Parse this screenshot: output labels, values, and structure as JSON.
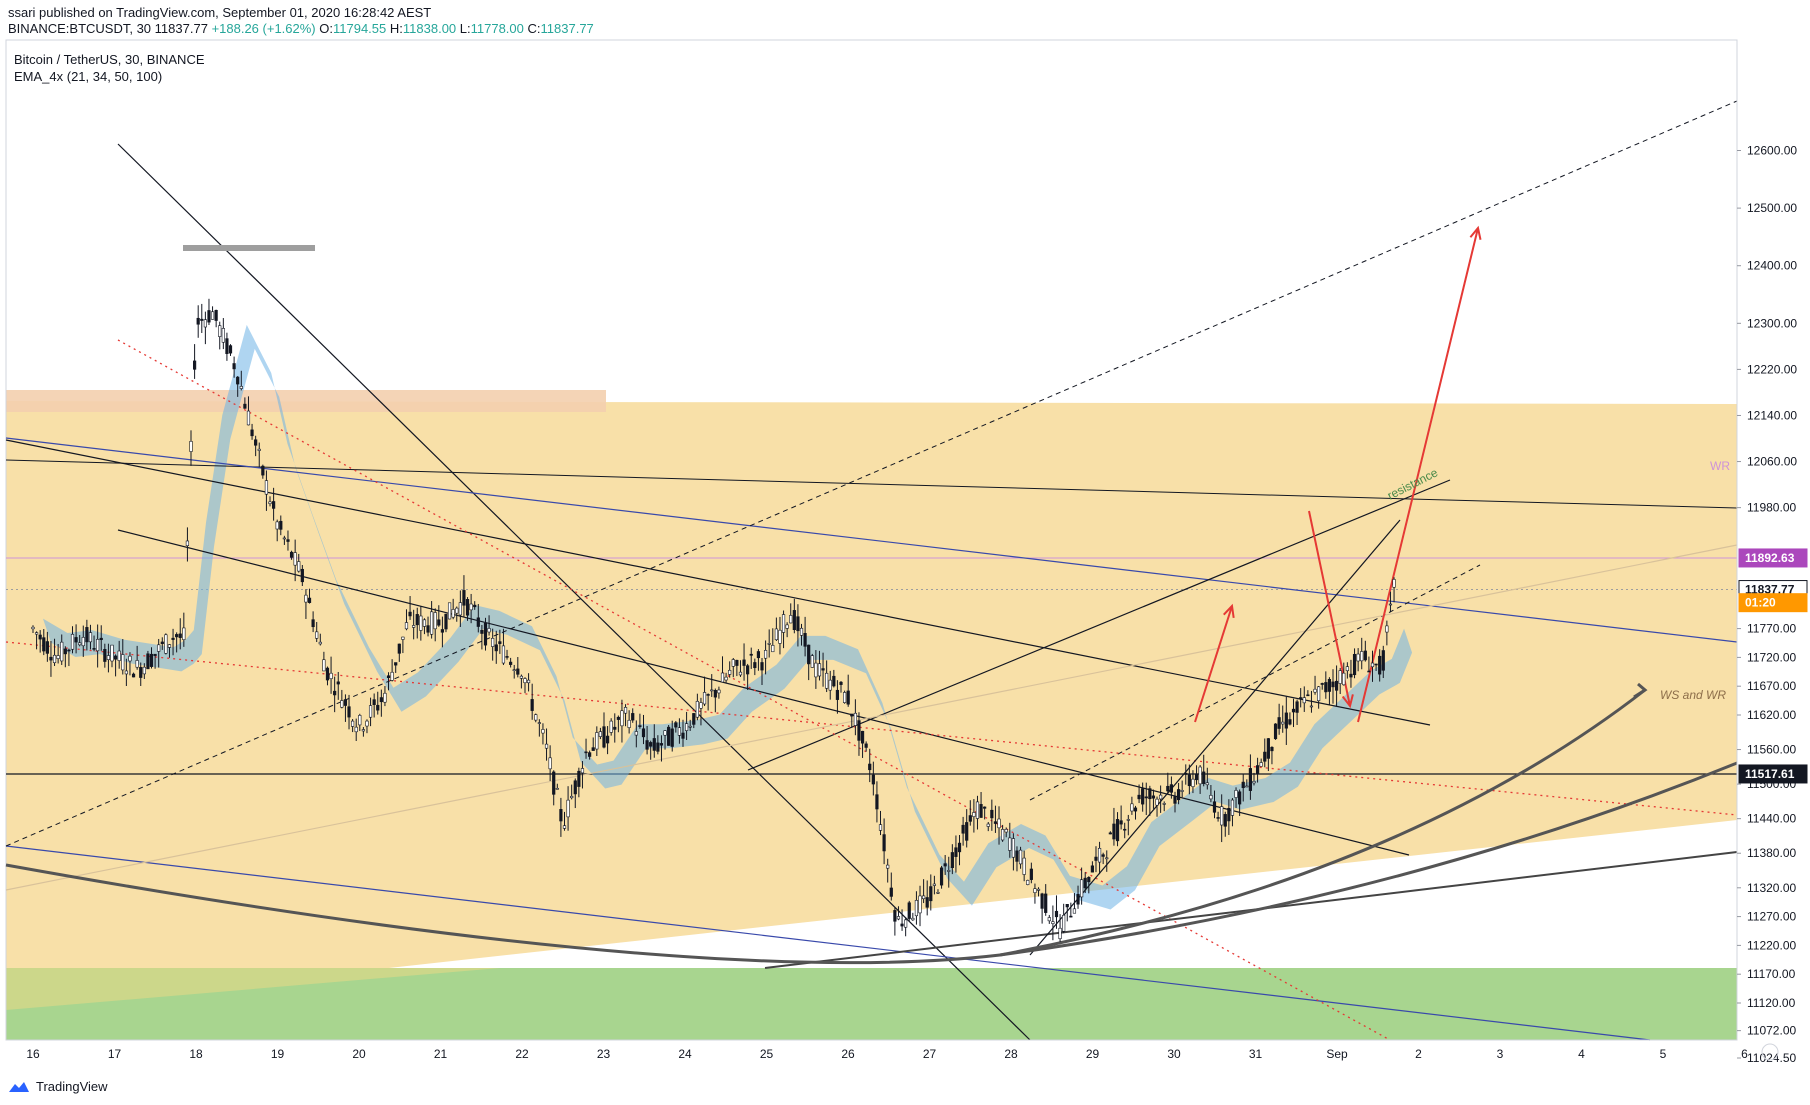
{
  "header": {
    "published": "ssari published on TradingView.com, September 01, 2020 16:28:42 AEST",
    "symbol": "BINANCE:BTCUSDT, 30",
    "last": "11837.77",
    "change": "+188.26 (+1.62%)",
    "o_label": "O:",
    "o": "11794.55",
    "h_label": "H:",
    "h": "11838.00",
    "l_label": "L:",
    "l": "11778.00",
    "c_label": "C:",
    "c": "11837.77"
  },
  "legend": {
    "title": "Bitcoin / TetherUS, 30, BINANCE",
    "indicator": "EMA_4x (21, 34, 50, 100)"
  },
  "footer": {
    "brand": "TradingView"
  },
  "colors": {
    "zone": "#f8e0a8",
    "green_zone": "#a8d58f",
    "ema_band": "#6db3e6",
    "trend_red": "#e53935",
    "blue_line": "#3949ab",
    "candle": "#131722"
  },
  "chart_data": {
    "type": "candlestick",
    "title": "Bitcoin / TetherUS, 30, BINANCE",
    "x_ticks": [
      "16",
      "17",
      "18",
      "19",
      "20",
      "21",
      "22",
      "23",
      "24",
      "25",
      "26",
      "27",
      "28",
      "29",
      "30",
      "31",
      "Sep",
      "2",
      "3",
      "4",
      "5",
      "6"
    ],
    "y_ticks": [
      12600.0,
      12500.0,
      12400.0,
      12300.0,
      12220.0,
      12140.0,
      12060.0,
      11980.0,
      11770.0,
      11720.0,
      11670.0,
      11620.0,
      11560.0,
      11500.0,
      11440.0,
      11380.0,
      11320.0,
      11270.0,
      11220.0,
      11170.0,
      11120.0,
      11072.0,
      11024.5
    ],
    "y_tick_labels": [
      "12600.00",
      "12500.00",
      "12400.00",
      "12300.00",
      "12220.00",
      "12140.00",
      "12060.00",
      "11980.00",
      "11770.00",
      "11720.00",
      "11670.00",
      "11620.00",
      "11560.00",
      "11500.00",
      "11440.00",
      "11380.00",
      "11320.00",
      "11270.00",
      "11220.00",
      "11170.00",
      "11120.00",
      "11072.00",
      "11024.50"
    ],
    "price_badges": [
      {
        "label": "11892.63",
        "value": 11892.63,
        "color": "#ab47bc"
      },
      {
        "label": "11837.77",
        "value": 11837.77,
        "color": "#ffffff"
      },
      {
        "label": "01:20",
        "value": 11815.0,
        "color": "#ff9800"
      },
      {
        "label": "11517.61",
        "value": 11517.61,
        "color": "#131722"
      }
    ],
    "close_path_days": [
      0,
      0.3,
      0.6,
      1.0,
      1.3,
      1.6,
      1.75,
      1.85,
      2.0,
      2.2,
      2.5,
      2.8,
      3.0,
      3.3,
      3.6,
      4.0,
      4.3,
      4.6,
      5.0,
      5.3,
      5.6,
      6.0,
      6.3,
      6.5,
      6.8,
      7.0,
      7.3,
      7.6,
      8.0,
      8.3,
      8.6,
      9.0,
      9.3,
      9.6,
      10.0,
      10.3,
      10.6,
      11.0,
      11.3,
      11.6,
      12.0,
      12.3,
      12.6,
      13.0,
      13.3,
      13.6,
      14.0,
      14.3,
      14.6,
      15.0,
      15.3,
      15.6,
      16.0,
      16.3,
      16.55,
      16.7
    ],
    "close_path_prices": [
      11770,
      11720,
      11760,
      11720,
      11700,
      11740,
      11760,
      11750,
      12300,
      12320,
      12220,
      12050,
      11950,
      11860,
      11700,
      11600,
      11650,
      11780,
      11780,
      11820,
      11750,
      11700,
      11560,
      11430,
      11560,
      11580,
      11620,
      11560,
      11600,
      11650,
      11700,
      11720,
      11800,
      11700,
      11650,
      11520,
      11260,
      11300,
      11380,
      11460,
      11400,
      11320,
      11250,
      11350,
      11420,
      11480,
      11480,
      11520,
      11440,
      11520,
      11600,
      11640,
      11680,
      11720,
      11700,
      11837.77
    ],
    "annotations": {
      "wr": "WR",
      "resistance": "resistance",
      "ws_wr": "WS and WR"
    }
  }
}
